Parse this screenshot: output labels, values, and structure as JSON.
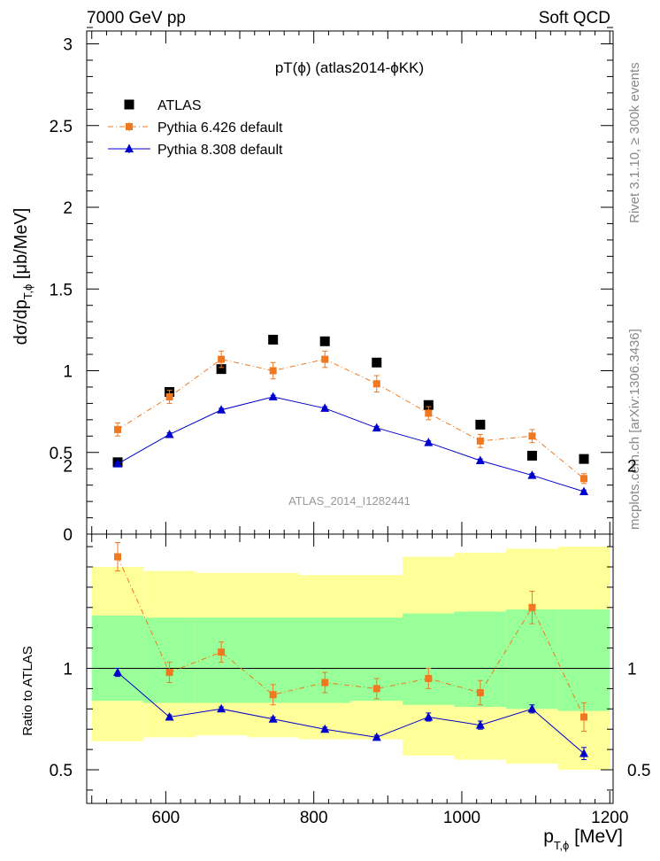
{
  "header": {
    "left": "7000 GeV pp",
    "right": "Soft QCD"
  },
  "side_labels": {
    "rivet": "Rivet 3.1.10, ≥ 300k events",
    "mcplots": "mcplots.cern.ch [arXiv:1306.3436]"
  },
  "chart_data": [
    {
      "type": "scatter",
      "title": "pT(ϕ) (atlas2014-ϕKK)",
      "watermark": "ATLAS_2014_I1282441",
      "ylabel": "dσ/dp_T,ϕ [μb/MeV]",
      "xlabel": "p_T,ϕ [MeV]",
      "xlim": [
        480,
        1220
      ],
      "ylim": [
        0,
        3.1
      ],
      "x_ticks": [
        "600",
        "800",
        "1000",
        "1200"
      ],
      "y_ticks": [
        "0",
        "0.5",
        "1",
        "1.5",
        "2",
        "2.5",
        "3"
      ],
      "legend_position": "top-left",
      "x": [
        535,
        605,
        675,
        745,
        815,
        885,
        955,
        1025,
        1095,
        1165
      ],
      "series": [
        {
          "name": "ATLAS",
          "color": "#000000",
          "marker": "square",
          "values": [
            0.44,
            0.87,
            1.01,
            1.19,
            1.18,
            1.05,
            0.79,
            0.67,
            0.48,
            0.46
          ]
        },
        {
          "name": "Pythia 6.426 default",
          "color": "#f07820",
          "marker": "square-small",
          "line": "dash-dot",
          "values": [
            0.64,
            0.84,
            1.07,
            1.0,
            1.07,
            0.92,
            0.74,
            0.57,
            0.6,
            0.34
          ],
          "errors": [
            0.04,
            0.04,
            0.05,
            0.05,
            0.05,
            0.05,
            0.04,
            0.04,
            0.04,
            0.03
          ]
        },
        {
          "name": "Pythia 8.308 default",
          "color": "#0000cc",
          "marker": "triangle",
          "line": "solid",
          "values": [
            0.43,
            0.61,
            0.76,
            0.84,
            0.77,
            0.65,
            0.56,
            0.45,
            0.36,
            0.26
          ],
          "errors": [
            0.01,
            0.01,
            0.01,
            0.01,
            0.01,
            0.01,
            0.01,
            0.01,
            0.01,
            0.01
          ]
        }
      ]
    },
    {
      "type": "scatter",
      "ylabel": "Ratio to ATLAS",
      "ylim": [
        0.35,
        2.35
      ],
      "y_ticks": [
        "0.5",
        "1",
        "2"
      ],
      "reference_line": 1,
      "bin_edges": [
        500,
        570,
        640,
        710,
        780,
        850,
        920,
        990,
        1060,
        1130,
        1200
      ],
      "bands": [
        {
          "name": "outer",
          "color": "#ffff99",
          "low": [
            0.64,
            0.66,
            0.67,
            0.66,
            0.65,
            0.65,
            0.57,
            0.55,
            0.53,
            0.5
          ],
          "high": [
            1.5,
            1.48,
            1.47,
            1.47,
            1.46,
            1.46,
            1.55,
            1.57,
            1.59,
            1.6
          ]
        },
        {
          "name": "inner",
          "color": "#99ff99",
          "low": [
            0.84,
            0.83,
            0.83,
            0.83,
            0.83,
            0.84,
            0.82,
            0.81,
            0.8,
            0.79
          ],
          "high": [
            1.26,
            1.25,
            1.25,
            1.25,
            1.25,
            1.25,
            1.27,
            1.28,
            1.29,
            1.29
          ]
        }
      ],
      "series": [
        {
          "name": "Pythia 6.426 default",
          "color": "#f07820",
          "marker": "square-small",
          "line": "dash-dot",
          "values": [
            1.55,
            0.98,
            1.08,
            0.87,
            0.93,
            0.9,
            0.95,
            0.88,
            1.3,
            0.76
          ],
          "errors": [
            0.07,
            0.05,
            0.05,
            0.05,
            0.05,
            0.05,
            0.05,
            0.06,
            0.08,
            0.07
          ]
        },
        {
          "name": "Pythia 8.308 default",
          "color": "#0000cc",
          "marker": "triangle",
          "line": "solid",
          "values": [
            0.98,
            0.76,
            0.8,
            0.75,
            0.7,
            0.66,
            0.76,
            0.72,
            0.8,
            0.58
          ],
          "errors": [
            0.02,
            0.01,
            0.01,
            0.01,
            0.01,
            0.01,
            0.02,
            0.02,
            0.02,
            0.03
          ]
        }
      ],
      "x_ticks": [
        "600",
        "800",
        "1000",
        "1200"
      ]
    }
  ]
}
